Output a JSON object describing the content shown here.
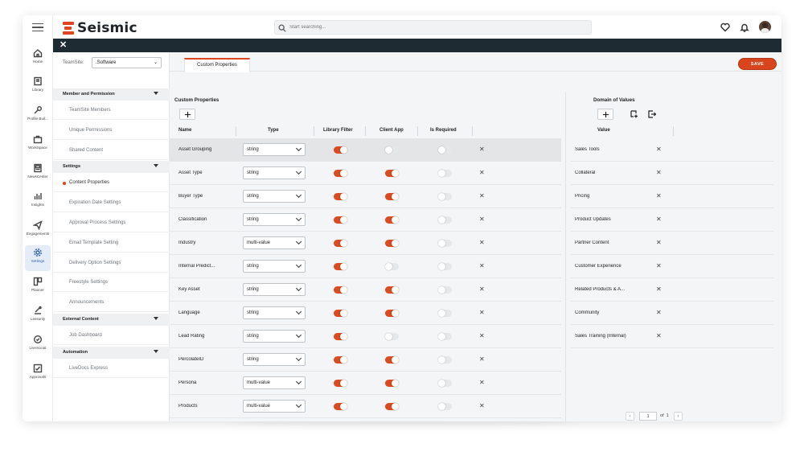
{
  "app": {
    "brand": "Seismic",
    "accent_color": "#e0461d",
    "dark_bar_color": "#1f2b32"
  },
  "search": {
    "placeholder": "Start searching..."
  },
  "rail": {
    "menu_icon": "hamburger-icon",
    "items": [
      {
        "label": "Home",
        "icon": "home-icon"
      },
      {
        "label": "Library",
        "icon": "library-icon"
      },
      {
        "label": "Profile Buil...",
        "icon": "wrench-icon"
      },
      {
        "label": "WorkSpace",
        "icon": "briefcase-icon"
      },
      {
        "label": "NewsCenter",
        "icon": "newspaper-icon"
      },
      {
        "label": "Insights",
        "icon": "bar-chart-icon"
      },
      {
        "label": "Engagements",
        "icon": "paper-plane-icon"
      },
      {
        "label": "Settings",
        "icon": "gear-icon",
        "active": true
      },
      {
        "label": "Planner",
        "icon": "planner-icon"
      },
      {
        "label": "Lessonly",
        "icon": "lessonly-icon"
      },
      {
        "label": "LiveSocial",
        "icon": "livesocial-icon"
      },
      {
        "label": "Approvals",
        "icon": "approvals-icon"
      }
    ]
  },
  "header_icons": [
    "heart-icon",
    "bell-icon",
    "avatar"
  ],
  "darkbar": {
    "close_glyph": "✕"
  },
  "settings_nav": {
    "teamsite_label": "TeamSite:",
    "teamsite_value": ".Software",
    "sections": [
      {
        "title": "Member and Permission",
        "items": [
          "TeamSite Members",
          "Unique Permissions",
          "Shared Content"
        ]
      },
      {
        "title": "Settings",
        "items": [
          "Content Properties",
          "Expiration Date Settings",
          "Approval Process Settings",
          "Email Template Setting",
          "Delivery Option Settings",
          "Freestyle Settings",
          "Announcements"
        ]
      },
      {
        "title": "External Content",
        "items": [
          "Job Dashboard"
        ]
      },
      {
        "title": "Automation",
        "items": [
          "LiveDocs Express"
        ]
      }
    ],
    "active_item": "Content Properties"
  },
  "tabs": {
    "active": "Custom Properties"
  },
  "toolbar": {
    "save_label": "SAVE"
  },
  "custom_properties": {
    "title": "Custom Properties",
    "columns": {
      "name": "Name",
      "type": "Type",
      "library_filter": "Library Filter",
      "client_app": "Client App",
      "is_required": "Is Required"
    },
    "rows": [
      {
        "name": "Asset Grouping",
        "type": "string",
        "library_filter": true,
        "client_app": false,
        "is_required": false,
        "highlight": true
      },
      {
        "name": "Asset Type",
        "type": "string",
        "library_filter": true,
        "client_app": true,
        "is_required": false
      },
      {
        "name": "Buyer Type",
        "type": "string",
        "library_filter": true,
        "client_app": true,
        "is_required": false
      },
      {
        "name": "Classification",
        "type": "string",
        "library_filter": true,
        "client_app": true,
        "is_required": false
      },
      {
        "name": "Industry",
        "type": "multi-value",
        "library_filter": true,
        "client_app": true,
        "is_required": false
      },
      {
        "name": "Internal Predict...",
        "type": "string",
        "library_filter": true,
        "client_app": false,
        "is_required": false
      },
      {
        "name": "Key Asset",
        "type": "string",
        "library_filter": true,
        "client_app": true,
        "is_required": false
      },
      {
        "name": "Language",
        "type": "string",
        "library_filter": true,
        "client_app": true,
        "is_required": false
      },
      {
        "name": "Lead Rating",
        "type": "string",
        "library_filter": true,
        "client_app": false,
        "is_required": false
      },
      {
        "name": "PercolateID",
        "type": "string",
        "library_filter": true,
        "client_app": true,
        "is_required": false
      },
      {
        "name": "Persona",
        "type": "multi-value",
        "library_filter": true,
        "client_app": true,
        "is_required": false
      },
      {
        "name": "Products",
        "type": "multi-value",
        "library_filter": true,
        "client_app": true,
        "is_required": false
      }
    ]
  },
  "domain_values": {
    "title": "Domain of Values",
    "column": "Value",
    "values": [
      "Sales Tools",
      "Collateral",
      "Pricing",
      "Product Updates",
      "Partner Content",
      "Customer Experience",
      "Related Products & A...",
      "Community",
      "Sales Training (Internal)"
    ],
    "pager": {
      "current": "1",
      "of_label": "of",
      "total": "1"
    }
  }
}
